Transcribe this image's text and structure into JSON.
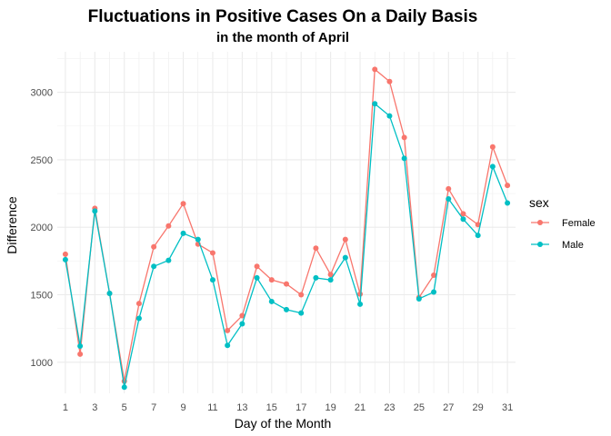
{
  "chart_data": {
    "type": "line",
    "title": "Fluctuations in Positive Cases On a Daily Basis",
    "subtitle": "in the month of April",
    "xlabel": "Day of the Month",
    "ylabel": "Difference",
    "x": [
      1,
      2,
      3,
      4,
      5,
      6,
      7,
      8,
      9,
      10,
      11,
      12,
      13,
      14,
      15,
      16,
      17,
      18,
      19,
      20,
      21,
      22,
      23,
      24,
      25,
      26,
      27,
      28,
      29,
      30,
      31
    ],
    "x_tick_labels": [
      "1",
      "3",
      "5",
      "7",
      "9",
      "11",
      "13",
      "15",
      "17",
      "19",
      "21",
      "23",
      "25",
      "27",
      "29",
      "31"
    ],
    "x_ticks": [
      1,
      3,
      5,
      7,
      9,
      11,
      13,
      15,
      17,
      19,
      21,
      23,
      25,
      27,
      29,
      31
    ],
    "y_ticks": [
      1000,
      1500,
      2000,
      2500,
      3000
    ],
    "y_tick_labels": [
      "1000",
      "1500",
      "2000",
      "2500",
      "3000"
    ],
    "xlim": [
      0.45,
      31.55
    ],
    "ylim": [
      770,
      3300
    ],
    "grid": true,
    "legend": {
      "title": "sex",
      "position": "right"
    },
    "series": [
      {
        "name": "Female",
        "color": "#F8766D",
        "values": [
          1800,
          1060,
          2140,
          1510,
          860,
          1435,
          1855,
          2010,
          2175,
          1875,
          1810,
          1235,
          1345,
          1710,
          1610,
          1580,
          1500,
          1845,
          1650,
          1910,
          1505,
          3170,
          3080,
          2665,
          1480,
          1645,
          2285,
          2100,
          2020,
          2595,
          2310
        ]
      },
      {
        "name": "Male",
        "color": "#00BFC4",
        "values": [
          1760,
          1120,
          2120,
          1510,
          815,
          1325,
          1710,
          1755,
          1955,
          1910,
          1610,
          1125,
          1285,
          1625,
          1450,
          1390,
          1365,
          1625,
          1610,
          1775,
          1430,
          2915,
          2825,
          2510,
          1470,
          1520,
          2210,
          2060,
          1940,
          2450,
          2180
        ]
      }
    ]
  }
}
